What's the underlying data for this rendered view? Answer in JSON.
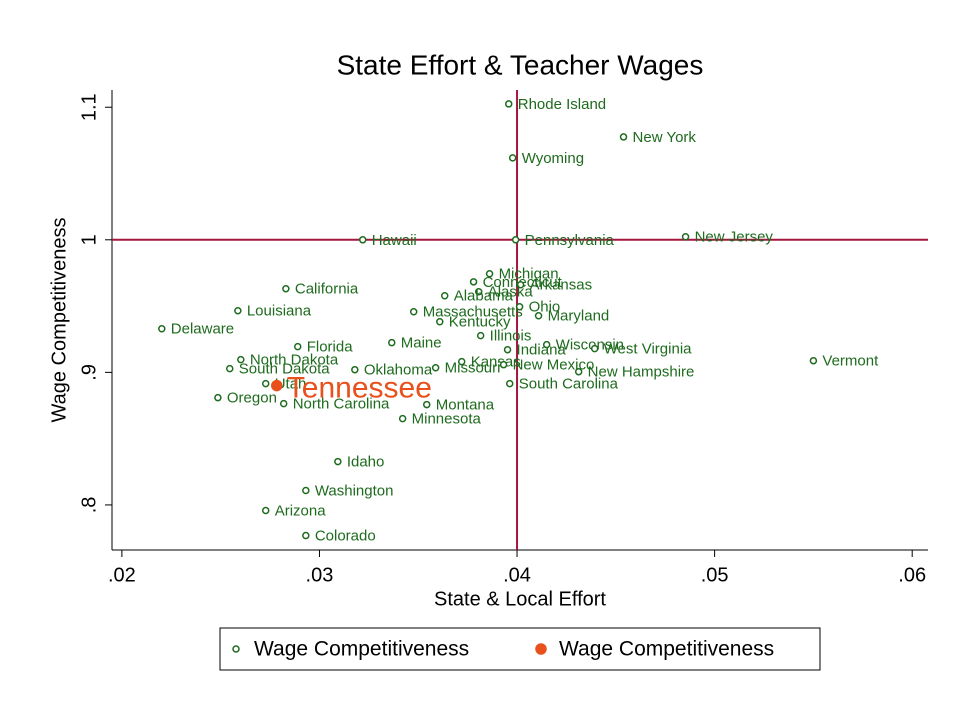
{
  "chart_data": {
    "type": "scatter",
    "title": "State Effort & Teacher Wages",
    "x_label": "State & Local Effort",
    "y_label": "Wage Competitiveness",
    "xlim": [
      0.0195,
      0.0608
    ],
    "ylim": [
      0.766,
      1.113
    ],
    "xticks": [
      {
        "value": 0.02,
        "label": ".02"
      },
      {
        "value": 0.03,
        "label": ".03"
      },
      {
        "value": 0.04,
        "label": ".04"
      },
      {
        "value": 0.05,
        "label": ".05"
      },
      {
        "value": 0.06,
        "label": ".06"
      }
    ],
    "yticks": [
      {
        "value": 0.8,
        "label": ".8"
      },
      {
        "value": 0.9,
        "label": ".9"
      },
      1,
      1.1
    ],
    "xline": 0.04,
    "yline": 1,
    "line_color": "#a3173f",
    "series": [
      {
        "name": "Wage Competitiveness",
        "color": "#1e6b1e",
        "marker": "hollow",
        "labels": [
          "Rhode Island",
          "New York",
          "Wyoming",
          "Hawaii",
          "Pennsylvania",
          "New Jersey",
          "Michigan",
          "Connecticut",
          "Arkansas",
          "Alaska",
          "Alabama",
          "California",
          "Louisiana",
          "Massachusetts",
          "Ohio",
          "Maryland",
          "Kentucky",
          "Delaware",
          "Illinois",
          "Maine",
          "Florida",
          "Wisconsin",
          "Indiana",
          "West Virginia",
          "North Dakota",
          "Vermont",
          "South Dakota",
          "Oklahoma",
          "Missouri",
          "Kansas",
          "New Mexico",
          "New Hampshire",
          "South Carolina",
          "Utah",
          "Oregon",
          "North Carolina",
          "Montana",
          "Minnesota",
          "Idaho",
          "Washington",
          "Arizona",
          "Colorado"
        ],
        "x": [
          0.03958,
          0.04539,
          0.03978,
          0.03219,
          0.03993,
          0.04853,
          0.03861,
          0.0378,
          0.04018,
          0.03806,
          0.03634,
          0.0283,
          0.02587,
          0.03477,
          0.04013,
          0.04109,
          0.03609,
          0.02202,
          0.03816,
          0.03366,
          0.0289,
          0.0415,
          0.03952,
          0.04393,
          0.02602,
          0.055,
          0.02546,
          0.03179,
          0.03588,
          0.0372,
          0.03932,
          0.04312,
          0.03963,
          0.02728,
          0.02486,
          0.02819,
          0.03543,
          0.03421,
          0.03093,
          0.02931,
          0.02728,
          0.02931
        ],
        "values": [
          1.1025,
          1.0776,
          1.0618,
          1.0,
          1.0,
          1.0023,
          0.9744,
          0.9683,
          0.9661,
          0.9608,
          0.9578,
          0.9631,
          0.9465,
          0.9457,
          0.9495,
          0.9427,
          0.9382,
          0.9329,
          0.9277,
          0.9224,
          0.9194,
          0.9209,
          0.9171,
          0.9179,
          0.9096,
          0.9088,
          0.9028,
          0.902,
          0.9035,
          0.9081,
          0.9058,
          0.9005,
          0.8915,
          0.8915,
          0.8809,
          0.8764,
          0.8757,
          0.8651,
          0.8327,
          0.8109,
          0.7958,
          0.7769
        ]
      },
      {
        "name": "Wage Competitiveness",
        "color": "#e8501c",
        "marker": "solid",
        "labels": [
          "Tennessee"
        ],
        "x": [
          0.02784
        ],
        "values": [
          0.89
        ]
      }
    ]
  }
}
